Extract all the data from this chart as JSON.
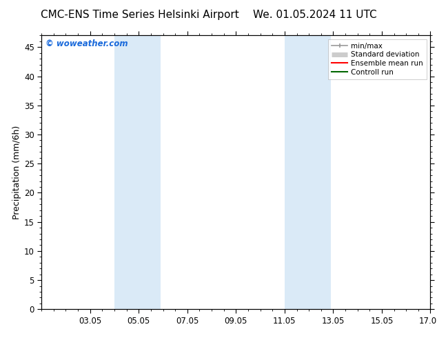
{
  "title_left": "CMC-ENS Time Series Helsinki Airport",
  "title_right": "We. 01.05.2024 11 UTC",
  "ylabel": "Precipitation (mm/6h)",
  "watermark": "© woweather.com",
  "watermark_color": "#1a6adb",
  "xlim_start": 1,
  "xlim_end": 17,
  "ylim_bottom": 0,
  "ylim_top": 47,
  "yticks": [
    0,
    5,
    10,
    15,
    20,
    25,
    30,
    35,
    40,
    45
  ],
  "xtick_labels": [
    "03.05",
    "05.05",
    "07.05",
    "09.05",
    "11.05",
    "13.05",
    "15.05",
    "17.05"
  ],
  "xtick_positions": [
    3,
    5,
    7,
    9,
    11,
    13,
    15,
    17
  ],
  "blue_bands": [
    {
      "x_start": 4.0,
      "x_end": 5.9
    },
    {
      "x_start": 11.0,
      "x_end": 12.9
    }
  ],
  "bg_color": "#ffffff",
  "band_color": "#daeaf7",
  "legend_items": [
    {
      "label": "min/max",
      "color": "#999999",
      "lw": 1.2,
      "style": "minmax"
    },
    {
      "label": "Standard deviation",
      "color": "#cccccc",
      "lw": 5,
      "style": "std"
    },
    {
      "label": "Ensemble mean run",
      "color": "#ff0000",
      "lw": 1.5,
      "style": "line"
    },
    {
      "label": "Controll run",
      "color": "#006600",
      "lw": 1.5,
      "style": "line"
    }
  ],
  "title_fontsize": 11,
  "ylabel_fontsize": 9,
  "tick_fontsize": 8.5,
  "watermark_fontsize": 8.5,
  "legend_fontsize": 7.5
}
